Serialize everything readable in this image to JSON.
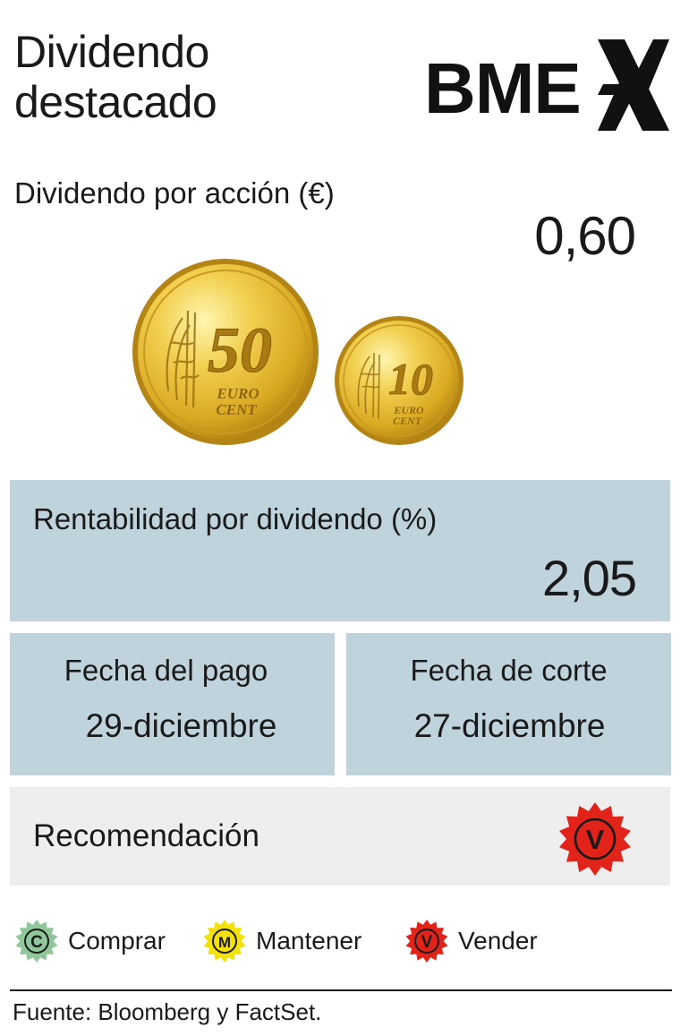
{
  "header": {
    "title_line1": "Dividendo",
    "title_line2": "destacado",
    "logo_text": "BME",
    "logo_mark": "X"
  },
  "dividend": {
    "label": "Dividendo por acción (€)",
    "value": "0,60"
  },
  "coins": {
    "big": {
      "icon": "50-euro-cent-coin",
      "number": "50",
      "text_line1": "EURO",
      "text_line2": "CENT"
    },
    "small": {
      "icon": "10-euro-cent-coin",
      "number": "10",
      "text_line1": "EURO",
      "text_line2": "CENT"
    }
  },
  "yield": {
    "label": "Rentabilidad por dividendo (%)",
    "value": "2,05"
  },
  "payment": {
    "label": "Fecha del pago",
    "value": "29-diciembre"
  },
  "cutoff": {
    "label": "Fecha de corte",
    "value": "27-diciembre"
  },
  "recommendation": {
    "label": "Recomendación",
    "badge_letter": "V",
    "badge_color": "#e2231a"
  },
  "legend": [
    {
      "letter": "C",
      "label": "Comprar",
      "color": "#8fc79a"
    },
    {
      "letter": "M",
      "label": "Mantener",
      "color": "#f4e10a"
    },
    {
      "letter": "V",
      "label": "Vender",
      "color": "#e2231a"
    }
  ],
  "colors": {
    "panel_blue": "#bfd3dc",
    "panel_grey": "#eeeeee",
    "coin_gold": "#e6c23c"
  },
  "footer": {
    "source": "Fuente: Bloomberg y FactSet."
  }
}
